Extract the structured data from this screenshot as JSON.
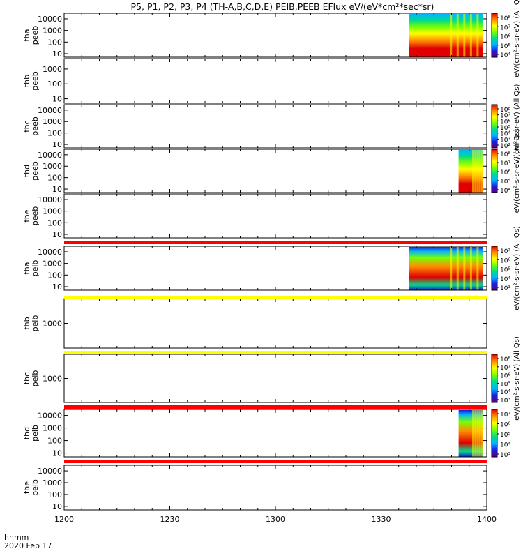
{
  "title": "P5, P1, P2, P3, P4 (TH-A,B,C,D,E) PEIB,PEEB EFlux eV/(eV*cm²*sec*sr)",
  "footer": {
    "time_label": "hhmm",
    "date_label": "2020 Feb 17"
  },
  "x_ticks": [
    "1200",
    "1230",
    "1300",
    "1330",
    "1400"
  ],
  "chart_data": {
    "type": "heatmap",
    "title": "P5, P1, P2, P3, P4 (TH-A,B,C,D,E) PEIB,PEEB EFlux eV/(eV*cm²*sec*sr)",
    "xlabel": "hhmm",
    "date": "2020 Feb 17",
    "xlim": [
      "12:00",
      "14:00"
    ],
    "x_tick_labels": [
      "1200",
      "1230",
      "1300",
      "1330",
      "1400"
    ],
    "colormap": [
      "#5a0078",
      "#1e1edc",
      "#00b4ff",
      "#00dc8c",
      "#78ff00",
      "#ffff00",
      "#ff8c00",
      "#e10000"
    ],
    "panels": [
      {
        "probe": "tha",
        "instrument": "peeb",
        "ylabel": [
          "tha",
          "peeb"
        ],
        "y_ticks": [
          "10000",
          "1000",
          "100",
          "10"
        ],
        "ylim": [
          5,
          30000
        ],
        "log": true,
        "data_intervals": [
          [
            "13:38",
            "13:59"
          ]
        ],
        "colorbar_ticks": [
          "10⁸",
          "10⁷",
          "10⁶",
          "10⁵",
          "10⁴"
        ]
      },
      {
        "probe": "thb",
        "instrument": "peeb",
        "ylabel": [
          "thb",
          "peeb"
        ],
        "y_ticks": [
          "1000",
          "100",
          "10"
        ],
        "ylim": [
          5,
          5000
        ],
        "log": true,
        "data_intervals": []
      },
      {
        "probe": "thc",
        "instrument": "peeb",
        "ylabel": [
          "thc",
          "peeb"
        ],
        "y_ticks": [
          "10000",
          "1000",
          "100",
          "10"
        ],
        "ylim": [
          5,
          30000
        ],
        "log": true,
        "data_intervals": [],
        "colorbar_ticks": [
          "10⁸",
          "10⁷",
          "10⁶",
          "10⁵",
          "10⁴",
          "10³",
          "10²"
        ]
      },
      {
        "probe": "thd",
        "instrument": "peeb",
        "ylabel": [
          "thd",
          "peeb"
        ],
        "y_ticks": [
          "10000",
          "1000",
          "100",
          "10"
        ],
        "ylim": [
          5,
          30000
        ],
        "log": true,
        "data_intervals": [
          [
            "13:52",
            "13:59"
          ]
        ],
        "colorbar_ticks": [
          "10⁸",
          "10⁷",
          "10⁶",
          "10⁵",
          "10⁴"
        ]
      },
      {
        "probe": "the",
        "instrument": "peeb",
        "ylabel": [
          "the",
          "peeb"
        ],
        "y_ticks": [
          "10000",
          "1000",
          "100",
          "10"
        ],
        "ylim": [
          5,
          30000
        ],
        "log": true,
        "data_intervals": []
      },
      {
        "probe": "tha",
        "instrument": "peib",
        "ylabel": [
          "tha",
          "peib"
        ],
        "y_ticks": [
          "10000",
          "1000",
          "100",
          "10"
        ],
        "ylim": [
          5,
          30000
        ],
        "log": true,
        "data_intervals": [
          [
            "13:38",
            "13:59"
          ]
        ],
        "colorbar_ticks": [
          "10⁷",
          "10⁶",
          "10⁵",
          "10⁴",
          "10³"
        ]
      },
      {
        "probe": "thb",
        "instrument": "peib",
        "ylabel": [
          "thb",
          "peib"
        ],
        "y_ticks": [
          "1000"
        ],
        "ylim": [
          100,
          10000
        ],
        "log": true,
        "data_intervals": []
      },
      {
        "probe": "thc",
        "instrument": "peib",
        "ylabel": [
          "thc",
          "peib"
        ],
        "y_ticks": [
          "1000"
        ],
        "ylim": [
          100,
          10000
        ],
        "log": true,
        "data_intervals": [],
        "colorbar_ticks": [
          "10⁸",
          "10⁷",
          "10⁶",
          "10⁵",
          "10⁴",
          "10³"
        ]
      },
      {
        "probe": "thd",
        "instrument": "peib",
        "ylabel": [
          "thd",
          "peib"
        ],
        "y_ticks": [
          "10000",
          "1000",
          "100",
          "10"
        ],
        "ylim": [
          5,
          30000
        ],
        "log": true,
        "data_intervals": [
          [
            "13:52",
            "13:59"
          ]
        ],
        "colorbar_ticks": [
          "10⁷",
          "10⁶",
          "10⁵",
          "10⁴",
          "10³"
        ]
      },
      {
        "probe": "the",
        "instrument": "peib",
        "ylabel": [
          "the",
          "peib"
        ],
        "y_ticks": [
          "10000",
          "1000",
          "100",
          "10"
        ],
        "ylim": [
          5,
          30000
        ],
        "log": true,
        "data_intervals": []
      }
    ],
    "status_bars": [
      {
        "after_panel": 5,
        "color": "#ff0000"
      },
      {
        "after_panel": 6,
        "color": "#ffff00"
      },
      {
        "after_panel": 7,
        "color": "#ffff00"
      },
      {
        "after_panel": 8,
        "color": "#ff0000"
      },
      {
        "after_panel": 9,
        "color": "#ff0000"
      }
    ],
    "colorbar_labels": [
      "eV/(cm²-s-sr-eV) (All Qs)",
      "eV/(cm²-s-sr-eV) (All Qs)",
      "eV/(cm²-s-sr-eV) (All Qs)",
      "eV/(cm²-s-sr-eV) (All Qs)",
      "eV/(cm²-s-sr-eV) (All Qs)"
    ]
  }
}
